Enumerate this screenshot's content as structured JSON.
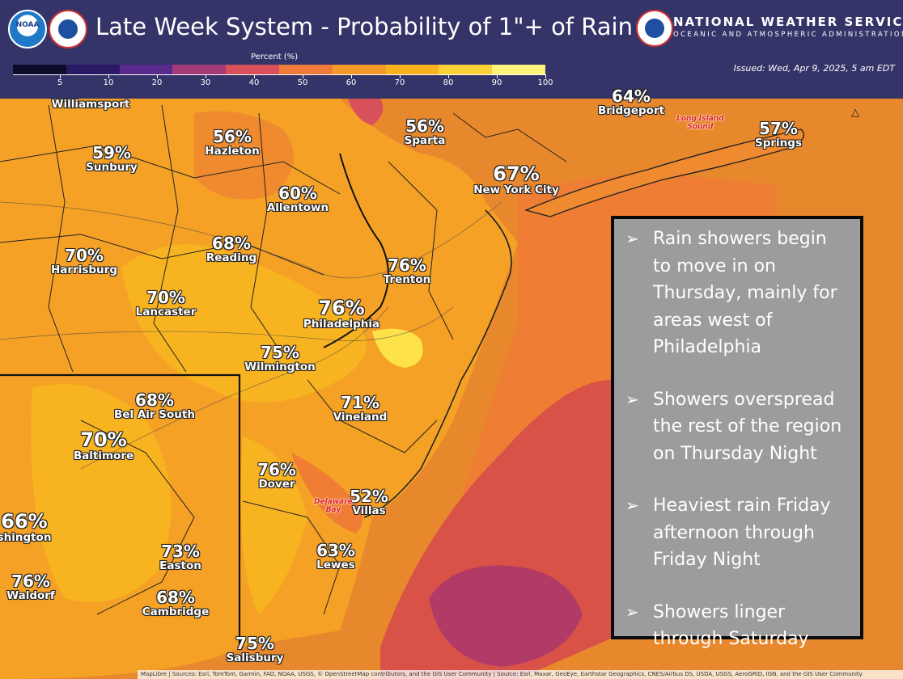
{
  "header": {
    "title": "Late Week System - Probability of 1\"+ of Rain",
    "agency_name": "NATIONAL WEATHER SERVICE",
    "agency_sub": "OCEANIC AND ATMOSPHERIC ADMINISTRATION",
    "issued": "Issued: Wed, Apr 9, 2025, 5 am EDT",
    "noaa_logo_text": "NOAA"
  },
  "legend": {
    "title": "Percent (%)",
    "ticks": [
      "5",
      "10",
      "20",
      "30",
      "40",
      "50",
      "60",
      "70",
      "80",
      "90",
      "100"
    ],
    "colors": [
      "#0c0c2a",
      "#2a1a66",
      "#5a2a8c",
      "#a43a78",
      "#d8505a",
      "#f07a38",
      "#f49a28",
      "#f7b21e",
      "#fbd13a",
      "#fff27a"
    ]
  },
  "cities": [
    {
      "name": "Williamsport",
      "pct": ""
    },
    {
      "name": "Sunbury",
      "pct": "59%"
    },
    {
      "name": "Hazleton",
      "pct": "56%"
    },
    {
      "name": "Sparta",
      "pct": "56%"
    },
    {
      "name": "Bridgeport",
      "pct": "64%"
    },
    {
      "name": "Springs",
      "pct": "57%"
    },
    {
      "name": "New York City",
      "pct": "67%"
    },
    {
      "name": "Allentown",
      "pct": "60%"
    },
    {
      "name": "Reading",
      "pct": "68%"
    },
    {
      "name": "Harrisburg",
      "pct": "70%"
    },
    {
      "name": "Trenton",
      "pct": "76%"
    },
    {
      "name": "Lancaster",
      "pct": "70%"
    },
    {
      "name": "Philadelphia",
      "pct": "76%"
    },
    {
      "name": "Wilmington",
      "pct": "75%"
    },
    {
      "name": "Bel Air South",
      "pct": "68%"
    },
    {
      "name": "Vineland",
      "pct": "71%"
    },
    {
      "name": "Baltimore",
      "pct": "70%"
    },
    {
      "name": "Dover",
      "pct": "76%"
    },
    {
      "name": "Villas",
      "pct": "52%"
    },
    {
      "name": "shington",
      "pct": "66%"
    },
    {
      "name": "Lewes",
      "pct": "63%"
    },
    {
      "name": "Easton",
      "pct": "73%"
    },
    {
      "name": "Waldorf",
      "pct": "76%"
    },
    {
      "name": "Cambridge",
      "pct": "68%"
    },
    {
      "name": "Salisbury",
      "pct": "75%"
    }
  ],
  "water_labels": {
    "long_island_sound_1": "Long Island",
    "long_island_sound_2": "Sound",
    "delaware_bay_1": "Delaware",
    "delaware_bay_2": "Bay"
  },
  "notes": [
    "Rain showers begin to move in on Thursday, mainly for areas west of Philadelphia",
    "Showers overspread the rest of the region on Thursday Night",
    "Heaviest rain Friday afternoon through Friday Night",
    "Showers linger through Saturday"
  ],
  "note_bullet": "➢",
  "attribution": "MapLibre | Sources: Esri, TomTom, Garmin, FAO, NOAA, USGS, © OpenStreetMap contributors, and the GIS User Community | Source: Esri, Maxar, GeoEye, Earthstar Geographics, CNES/Airbus DS, USDA, USGS, AeroGRID, IGN, and the GIS User Community"
}
